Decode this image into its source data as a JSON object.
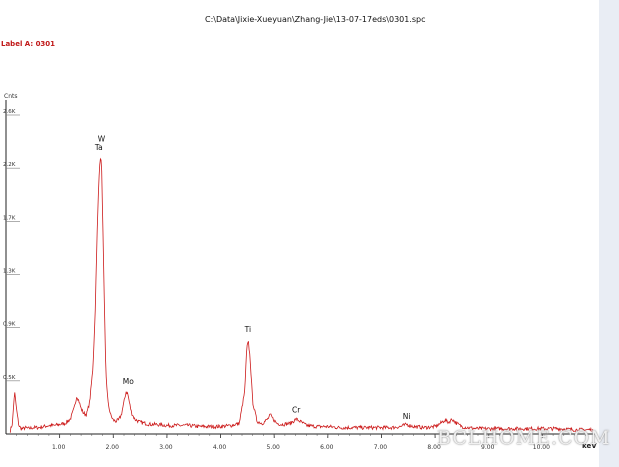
{
  "header": {
    "file_path": "C:\\Data\\Jixie-Xueyuan\\Zhang-Jie\\13-07-17eds\\0301.spc",
    "label_line": "Label A: 0301"
  },
  "watermark": "BCLHOME.COM",
  "colors": {
    "spectrum": "#cc1a1a",
    "label_red": "#c01818",
    "axis": "#222222",
    "right_strip": "#e9edf4"
  },
  "chart_data": {
    "type": "line",
    "ylabel": "Cnts",
    "xlabel": "keV",
    "xlim": [
      0,
      11.0
    ],
    "ylim": [
      0,
      3.0
    ],
    "x_ticks": [
      {
        "value": 1,
        "label": "1.00"
      },
      {
        "value": 2,
        "label": "2.00"
      },
      {
        "value": 3,
        "label": "3.00"
      },
      {
        "value": 4,
        "label": "4.00"
      },
      {
        "value": 5,
        "label": "5.00"
      },
      {
        "value": 6,
        "label": "6.00"
      },
      {
        "value": 7,
        "label": "7.00"
      },
      {
        "value": 8,
        "label": "8.00"
      },
      {
        "value": 9,
        "label": "9.00"
      },
      {
        "value": 10,
        "label": "10.00"
      }
    ],
    "y_ticks": [
      {
        "value": 0.5,
        "label": "0.5K"
      },
      {
        "value": 1.0,
        "label": "0.9K"
      },
      {
        "value": 1.5,
        "label": "1.3K"
      },
      {
        "value": 2.0,
        "label": "1.7K"
      },
      {
        "value": 2.5,
        "label": "2.2K"
      },
      {
        "value": 3.0,
        "label": "2.6K"
      }
    ],
    "element_labels": [
      {
        "text": "W",
        "x": 1.78,
        "y": 2.75
      },
      {
        "text": "Ta",
        "x": 1.73,
        "y": 2.67
      },
      {
        "text": "Mo",
        "x": 2.28,
        "y": 0.47
      },
      {
        "text": "Ti",
        "x": 4.51,
        "y": 0.96
      },
      {
        "text": "Cr",
        "x": 5.41,
        "y": 0.2
      },
      {
        "text": "Ni",
        "x": 7.47,
        "y": 0.14
      }
    ],
    "series": [
      {
        "x": [
          0.08,
          0.12,
          0.16,
          0.2,
          0.24,
          0.28,
          0.32,
          0.36,
          0.42,
          0.5,
          0.6,
          0.7,
          0.8,
          0.9,
          1.0,
          1.1,
          1.2,
          1.27,
          1.32,
          1.36,
          1.4,
          1.44,
          1.5,
          1.56,
          1.62,
          1.66,
          1.7,
          1.73,
          1.76,
          1.78,
          1.8,
          1.83,
          1.86,
          1.9,
          1.95,
          2.0,
          2.05,
          2.1,
          2.15,
          2.2,
          2.24,
          2.27,
          2.3,
          2.34,
          2.4,
          2.5,
          2.6,
          2.7,
          2.8,
          3.0,
          3.2,
          3.4,
          3.6,
          3.8,
          4.0,
          4.2,
          4.35,
          4.45,
          4.49,
          4.52,
          4.55,
          4.6,
          4.68,
          4.78,
          4.88,
          4.93,
          4.98,
          5.05,
          5.15,
          5.3,
          5.41,
          5.48,
          5.6,
          5.8,
          6.0,
          6.2,
          6.4,
          6.6,
          6.8,
          7.0,
          7.2,
          7.35,
          7.47,
          7.6,
          7.8,
          8.0,
          8.1,
          8.18,
          8.25,
          8.32,
          8.4,
          8.5,
          8.6,
          8.8,
          9.0,
          9.2,
          9.5,
          9.8,
          10.0,
          10.3,
          10.6,
          10.8,
          10.95
        ],
        "y": [
          0.03,
          0.1,
          0.4,
          0.22,
          0.08,
          0.05,
          0.05,
          0.06,
          0.05,
          0.06,
          0.06,
          0.07,
          0.08,
          0.08,
          0.09,
          0.1,
          0.14,
          0.24,
          0.36,
          0.31,
          0.24,
          0.2,
          0.18,
          0.3,
          0.62,
          1.1,
          1.9,
          2.4,
          2.6,
          2.55,
          2.1,
          1.3,
          0.6,
          0.3,
          0.18,
          0.13,
          0.12,
          0.13,
          0.18,
          0.3,
          0.4,
          0.38,
          0.3,
          0.2,
          0.14,
          0.11,
          0.1,
          0.09,
          0.09,
          0.08,
          0.08,
          0.08,
          0.07,
          0.07,
          0.07,
          0.08,
          0.1,
          0.4,
          0.82,
          0.86,
          0.72,
          0.3,
          0.12,
          0.1,
          0.14,
          0.18,
          0.14,
          0.1,
          0.09,
          0.1,
          0.14,
          0.12,
          0.08,
          0.07,
          0.07,
          0.06,
          0.06,
          0.06,
          0.06,
          0.06,
          0.06,
          0.07,
          0.09,
          0.07,
          0.06,
          0.07,
          0.1,
          0.13,
          0.11,
          0.14,
          0.1,
          0.07,
          0.06,
          0.05,
          0.05,
          0.05,
          0.05,
          0.05,
          0.05,
          0.05,
          0.04,
          0.04,
          0.04
        ]
      }
    ]
  }
}
